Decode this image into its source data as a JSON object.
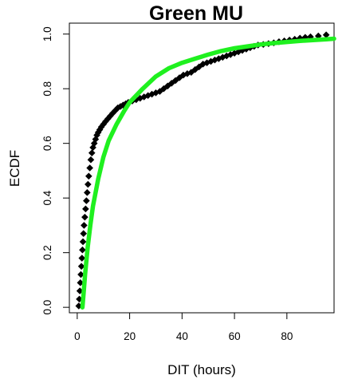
{
  "chart_data": {
    "type": "scatter",
    "title": "Green MU",
    "xlabel": "DIT (hours)",
    "ylabel": "ECDF",
    "xlim": [
      -3,
      98
    ],
    "ylim": [
      -0.02,
      1.04
    ],
    "x_ticks": [
      "0",
      "20",
      "40",
      "60",
      "80"
    ],
    "y_ticks": [
      "0.0",
      "0.2",
      "0.4",
      "0.6",
      "0.8",
      "1.0"
    ],
    "grid": false,
    "legend": "none",
    "series": [
      {
        "kind": "points",
        "color": "#000000",
        "x": [
          0.6,
          0.8,
          1.0,
          1.2,
          1.4,
          1.6,
          1.8,
          2.0,
          2.2,
          2.4,
          2.6,
          2.9,
          3.2,
          3.5,
          3.8,
          4.1,
          4.4,
          4.8,
          5.2,
          5.6,
          6.0,
          6.5,
          7.0,
          7.5,
          8.0,
          8.6,
          9.2,
          10.0,
          10.8,
          11.7,
          12.6,
          13.5,
          14.5,
          15.5,
          16.5,
          17.5,
          18.5,
          19.5,
          21,
          22.5,
          24,
          25.5,
          27,
          28.5,
          30,
          31.5,
          33,
          34.5,
          36,
          37.5,
          39,
          40.5,
          42,
          43.5,
          45,
          46.5,
          48,
          49.5,
          51,
          52.5,
          54,
          55.5,
          57,
          58.5,
          60,
          61.5,
          63,
          64.5,
          66,
          67.5,
          69,
          71,
          73,
          75,
          77,
          79,
          81,
          83,
          85,
          87,
          89,
          92,
          95
        ],
        "y": [
          0.005,
          0.03,
          0.06,
          0.09,
          0.12,
          0.15,
          0.18,
          0.21,
          0.24,
          0.27,
          0.3,
          0.33,
          0.36,
          0.39,
          0.42,
          0.45,
          0.48,
          0.51,
          0.54,
          0.565,
          0.585,
          0.6,
          0.615,
          0.63,
          0.64,
          0.65,
          0.66,
          0.67,
          0.68,
          0.69,
          0.7,
          0.71,
          0.72,
          0.73,
          0.735,
          0.74,
          0.745,
          0.75,
          0.755,
          0.76,
          0.765,
          0.77,
          0.775,
          0.78,
          0.785,
          0.79,
          0.8,
          0.81,
          0.82,
          0.83,
          0.84,
          0.85,
          0.855,
          0.86,
          0.87,
          0.88,
          0.89,
          0.895,
          0.9,
          0.905,
          0.91,
          0.915,
          0.92,
          0.925,
          0.93,
          0.935,
          0.94,
          0.945,
          0.95,
          0.955,
          0.96,
          0.962,
          0.965,
          0.968,
          0.972,
          0.975,
          0.978,
          0.981,
          0.985,
          0.988,
          0.99,
          0.993,
          0.997
        ]
      },
      {
        "kind": "line",
        "color": "#1ff01f",
        "x": [
          2,
          2.5,
          3,
          4,
          5,
          6,
          8,
          10,
          12,
          15,
          18,
          20,
          25,
          30,
          35,
          40,
          45,
          50,
          55,
          60,
          65,
          70,
          75,
          80,
          85,
          90,
          95,
          98
        ],
        "y": [
          0.0,
          0.06,
          0.12,
          0.22,
          0.3,
          0.37,
          0.47,
          0.55,
          0.61,
          0.67,
          0.72,
          0.75,
          0.8,
          0.845,
          0.875,
          0.895,
          0.91,
          0.925,
          0.938,
          0.948,
          0.955,
          0.962,
          0.967,
          0.971,
          0.975,
          0.978,
          0.981,
          0.983
        ]
      }
    ]
  }
}
